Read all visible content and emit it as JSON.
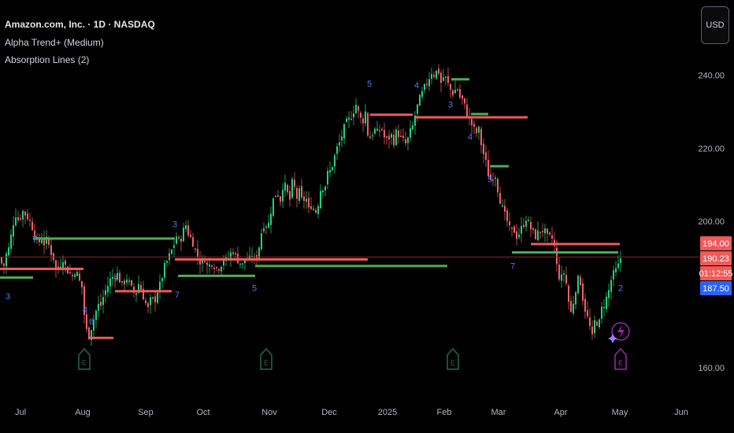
{
  "header": {
    "symbol_title": "Amazon.com, Inc. · 1D · NASDAQ",
    "indicators": [
      "Alpha Trend+ (Medium)",
      "Absorption Lines (2)"
    ]
  },
  "currency_button": "USD",
  "colors": {
    "background": "#000000",
    "up": "#26d07c",
    "down": "#f0626a",
    "signal_number": "#4d7cff",
    "support_line": "#4caf50",
    "resistance_line": "#f05a5a",
    "price_line": "#8b2020",
    "earnings_marker": "#1f6b52",
    "earnings_upcoming": "#9c27b0"
  },
  "chart_data": {
    "type": "candlestick",
    "x_ticks": [
      "Jul",
      "Aug",
      "Sep",
      "Oct",
      "Nov",
      "Dec",
      "2025",
      "Feb",
      "Mar",
      "Apr",
      "May",
      "Jun"
    ],
    "y_ticks": [
      160,
      180,
      200,
      220,
      240
    ],
    "y_tick_labels": [
      "160.00",
      "",
      "200.00",
      "220.00",
      "240.00"
    ],
    "ylim": [
      155,
      252
    ],
    "price_labels": [
      {
        "value": 194.0,
        "text": "194.00",
        "color": "#f05a5a"
      },
      {
        "value": 190.23,
        "text": "190.23",
        "color": "#f05a5a"
      },
      {
        "value": 188.7,
        "text": "01:12:55",
        "color": "#f05a5a"
      },
      {
        "value": 187.5,
        "text": "187.50",
        "color": "#2962ff"
      }
    ],
    "last_price": 190.23,
    "path": [
      [
        0,
        190
      ],
      [
        4,
        187
      ],
      [
        8,
        191
      ],
      [
        12,
        193
      ],
      [
        16,
        199
      ],
      [
        20,
        202
      ],
      [
        24,
        200
      ],
      [
        28,
        203
      ],
      [
        32,
        202
      ],
      [
        36,
        201
      ],
      [
        40,
        199
      ],
      [
        44,
        197
      ],
      [
        48,
        193
      ],
      [
        52,
        196
      ],
      [
        56,
        194
      ],
      [
        60,
        195
      ],
      [
        64,
        192
      ],
      [
        68,
        190
      ],
      [
        72,
        186
      ],
      [
        76,
        188
      ],
      [
        80,
        190
      ],
      [
        84,
        187
      ],
      [
        88,
        186
      ],
      [
        92,
        185
      ],
      [
        96,
        187
      ],
      [
        100,
        184
      ],
      [
        104,
        182
      ],
      [
        108,
        172
      ],
      [
        112,
        168
      ],
      [
        116,
        171
      ],
      [
        120,
        174
      ],
      [
        124,
        177
      ],
      [
        128,
        177
      ],
      [
        132,
        180
      ],
      [
        136,
        182
      ],
      [
        140,
        184
      ],
      [
        144,
        185
      ],
      [
        148,
        186
      ],
      [
        152,
        184
      ],
      [
        156,
        182
      ],
      [
        160,
        185
      ],
      [
        164,
        183
      ],
      [
        168,
        181
      ],
      [
        172,
        180
      ],
      [
        176,
        183
      ],
      [
        180,
        181
      ],
      [
        184,
        178
      ],
      [
        188,
        176
      ],
      [
        192,
        179
      ],
      [
        196,
        178
      ],
      [
        200,
        181
      ],
      [
        204,
        183
      ],
      [
        208,
        187
      ],
      [
        212,
        189
      ],
      [
        216,
        191
      ],
      [
        220,
        193
      ],
      [
        224,
        196
      ],
      [
        228,
        194
      ],
      [
        232,
        197
      ],
      [
        236,
        199
      ],
      [
        240,
        196
      ],
      [
        244,
        195
      ],
      [
        248,
        192
      ],
      [
        252,
        190
      ],
      [
        256,
        188
      ],
      [
        260,
        190
      ],
      [
        264,
        187
      ],
      [
        268,
        189
      ],
      [
        272,
        188
      ],
      [
        276,
        187
      ],
      [
        280,
        188
      ],
      [
        284,
        190
      ],
      [
        288,
        189
      ],
      [
        292,
        191
      ],
      [
        296,
        192
      ],
      [
        300,
        190
      ],
      [
        304,
        189
      ],
      [
        308,
        188
      ],
      [
        312,
        190
      ],
      [
        316,
        189
      ],
      [
        320,
        191
      ],
      [
        324,
        189
      ],
      [
        328,
        192
      ],
      [
        332,
        197
      ],
      [
        336,
        200
      ],
      [
        340,
        198
      ],
      [
        344,
        203
      ],
      [
        348,
        207
      ],
      [
        352,
        208
      ],
      [
        356,
        206
      ],
      [
        360,
        211
      ],
      [
        364,
        208
      ],
      [
        368,
        206
      ],
      [
        372,
        212
      ],
      [
        376,
        206
      ],
      [
        380,
        208
      ],
      [
        384,
        205
      ],
      [
        388,
        207
      ],
      [
        392,
        203
      ],
      [
        396,
        205
      ],
      [
        400,
        202
      ],
      [
        404,
        205
      ],
      [
        408,
        210
      ],
      [
        412,
        209
      ],
      [
        416,
        213
      ],
      [
        420,
        214
      ],
      [
        424,
        217
      ],
      [
        428,
        220
      ],
      [
        432,
        222
      ],
      [
        436,
        225
      ],
      [
        440,
        227
      ],
      [
        444,
        228
      ],
      [
        448,
        230
      ],
      [
        452,
        232
      ],
      [
        456,
        229
      ],
      [
        460,
        227
      ],
      [
        464,
        230
      ],
      [
        468,
        222
      ],
      [
        472,
        224
      ],
      [
        476,
        225
      ],
      [
        480,
        224
      ],
      [
        484,
        226
      ],
      [
        488,
        223
      ],
      [
        492,
        222
      ],
      [
        496,
        224
      ],
      [
        500,
        222
      ],
      [
        504,
        225
      ],
      [
        508,
        223
      ],
      [
        512,
        222
      ],
      [
        516,
        221
      ],
      [
        520,
        224
      ],
      [
        524,
        226
      ],
      [
        528,
        230
      ],
      [
        532,
        233
      ],
      [
        536,
        235
      ],
      [
        540,
        237
      ],
      [
        544,
        239
      ],
      [
        548,
        241
      ],
      [
        552,
        240
      ],
      [
        556,
        242
      ],
      [
        560,
        238
      ],
      [
        564,
        240
      ],
      [
        568,
        238
      ],
      [
        572,
        236
      ],
      [
        576,
        235
      ],
      [
        580,
        237
      ],
      [
        584,
        234
      ],
      [
        588,
        233
      ],
      [
        592,
        230
      ],
      [
        596,
        228
      ],
      [
        600,
        226
      ],
      [
        604,
        224
      ],
      [
        608,
        225
      ],
      [
        612,
        220
      ],
      [
        616,
        217
      ],
      [
        620,
        213
      ],
      [
        624,
        211
      ],
      [
        628,
        214
      ],
      [
        632,
        209
      ],
      [
        636,
        205
      ],
      [
        640,
        202
      ],
      [
        644,
        200
      ],
      [
        648,
        197
      ],
      [
        652,
        198
      ],
      [
        656,
        196
      ],
      [
        660,
        197
      ],
      [
        664,
        199
      ],
      [
        668,
        201
      ],
      [
        672,
        199
      ],
      [
        676,
        197
      ],
      [
        680,
        196
      ],
      [
        684,
        197
      ],
      [
        688,
        198
      ],
      [
        692,
        197
      ],
      [
        696,
        195
      ],
      [
        700,
        196
      ],
      [
        704,
        193
      ],
      [
        708,
        186
      ],
      [
        712,
        184
      ],
      [
        716,
        186
      ],
      [
        720,
        182
      ],
      [
        724,
        174
      ],
      [
        728,
        178
      ],
      [
        732,
        183
      ],
      [
        736,
        185
      ],
      [
        740,
        179
      ],
      [
        744,
        175
      ],
      [
        748,
        172
      ],
      [
        752,
        168
      ],
      [
        756,
        174
      ],
      [
        760,
        171
      ],
      [
        764,
        176
      ],
      [
        768,
        178
      ],
      [
        772,
        180
      ],
      [
        776,
        184
      ],
      [
        780,
        186
      ],
      [
        784,
        187
      ],
      [
        788,
        190
      ]
    ],
    "absorption_lines": [
      {
        "x1": 0,
        "x2": 106,
        "y": 187,
        "kind": "resistance"
      },
      {
        "x1": 0,
        "x2": 42,
        "y": 184.6,
        "kind": "support"
      },
      {
        "x1": 42,
        "x2": 222,
        "y": 195.3,
        "kind": "support"
      },
      {
        "x1": 146,
        "x2": 218,
        "y": 180.9,
        "kind": "resistance"
      },
      {
        "x1": 114,
        "x2": 144,
        "y": 168.1,
        "kind": "resistance"
      },
      {
        "x1": 222,
        "x2": 467,
        "y": 189.6,
        "kind": "resistance"
      },
      {
        "x1": 226,
        "x2": 324,
        "y": 185.1,
        "kind": "support"
      },
      {
        "x1": 324,
        "x2": 568,
        "y": 187.8,
        "kind": "support"
      },
      {
        "x1": 470,
        "x2": 524,
        "y": 229.2,
        "kind": "resistance"
      },
      {
        "x1": 528,
        "x2": 670,
        "y": 228.5,
        "kind": "resistance"
      },
      {
        "x1": 573,
        "x2": 596,
        "y": 238.9,
        "kind": "support"
      },
      {
        "x1": 598,
        "x2": 620,
        "y": 229.4,
        "kind": "support"
      },
      {
        "x1": 622,
        "x2": 646,
        "y": 215.1,
        "kind": "support"
      },
      {
        "x1": 650,
        "x2": 785,
        "y": 191.5,
        "kind": "support"
      },
      {
        "x1": 674,
        "x2": 787,
        "y": 193.8,
        "kind": "resistance"
      }
    ],
    "signal_numbers": [
      {
        "x": 44,
        "y": 194.3,
        "text": "7"
      },
      {
        "x": 10,
        "y": 178.7,
        "text": "3"
      },
      {
        "x": 108,
        "y": 175,
        "text": "4"
      },
      {
        "x": 116,
        "y": 171.8,
        "text": "6"
      },
      {
        "x": 147,
        "y": 183.5,
        "text": "7"
      },
      {
        "x": 222,
        "y": 198.4,
        "text": "3"
      },
      {
        "x": 225,
        "y": 179.1,
        "text": "7"
      },
      {
        "x": 323,
        "y": 181,
        "text": "5"
      },
      {
        "x": 469,
        "y": 236.9,
        "text": "5"
      },
      {
        "x": 529,
        "y": 236.5,
        "text": "4"
      },
      {
        "x": 572,
        "y": 231.2,
        "text": "3"
      },
      {
        "x": 597,
        "y": 222.4,
        "text": "4"
      },
      {
        "x": 622,
        "y": 210.7,
        "text": "5"
      },
      {
        "x": 651,
        "y": 187,
        "text": "7"
      },
      {
        "x": 788,
        "y": 181,
        "text": "2"
      }
    ],
    "earnings_markers": [
      {
        "x": 107,
        "label": "E",
        "upcoming": false
      },
      {
        "x": 338,
        "label": "E",
        "upcoming": false
      },
      {
        "x": 575,
        "label": "E",
        "upcoming": false
      },
      {
        "x": 788,
        "label": "E",
        "upcoming": true
      }
    ]
  }
}
